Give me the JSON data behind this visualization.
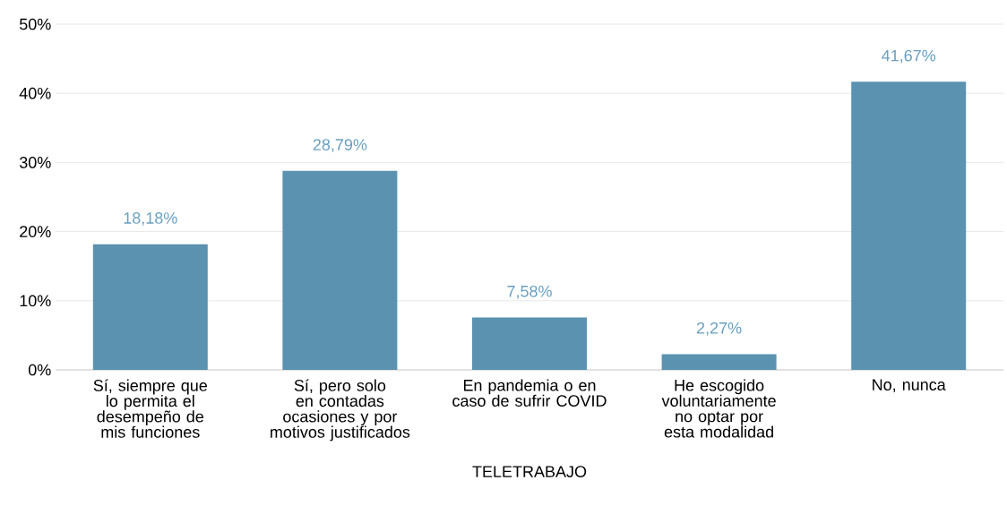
{
  "chart_data": {
    "type": "bar",
    "xlabel": "TELETRABAJO",
    "categories": [
      "Sí, siempre que lo permita el desempeño de mis funciones",
      "Sí, pero solo en contadas ocasiones y por motivos justificados",
      "En pandemia o en caso de sufrir COVID",
      "He escogido voluntariamente no optar por esta modalidad",
      "No, nunca"
    ],
    "values": [
      18.18,
      28.79,
      7.58,
      2.27,
      41.67
    ],
    "value_labels": [
      "18,18%",
      "28,79%",
      "7,58%",
      "2,27%",
      "41,67%"
    ],
    "color": "#5a92b0",
    "ylim": [
      0,
      50
    ],
    "yticks": [
      {
        "value": 0,
        "label": "0%"
      },
      {
        "value": 10,
        "label": "10%"
      },
      {
        "value": 20,
        "label": "20%"
      },
      {
        "value": 30,
        "label": "30%"
      },
      {
        "value": 40,
        "label": "40%"
      },
      {
        "value": 50,
        "label": "50%"
      }
    ],
    "grid": "y"
  }
}
